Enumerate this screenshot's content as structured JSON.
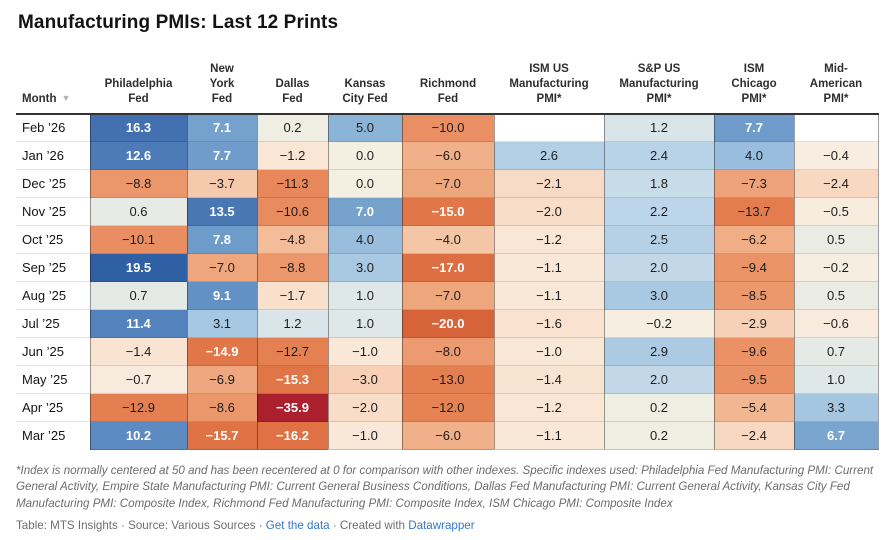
{
  "title": "Manufacturing PMIs: Last 12 Prints",
  "header": {
    "month_label": "Month",
    "sort_icon": "▼"
  },
  "columns": [
    {
      "lines": [
        "Philadelphia",
        "Fed"
      ]
    },
    {
      "lines": [
        "New",
        "York",
        "Fed"
      ]
    },
    {
      "lines": [
        "Dallas",
        "Fed"
      ]
    },
    {
      "lines": [
        "Kansas",
        "City Fed"
      ]
    },
    {
      "lines": [
        "Richmond",
        "Fed"
      ]
    },
    {
      "lines": [
        "ISM US",
        "Manufacturing",
        "PMI*"
      ]
    },
    {
      "lines": [
        "S&P US",
        "Manufacturing",
        "PMI*"
      ]
    },
    {
      "lines": [
        "ISM",
        "Chicago",
        "PMI*"
      ]
    },
    {
      "lines": [
        "Mid-",
        "American",
        "PMI*"
      ]
    }
  ],
  "chart_data": {
    "type": "table",
    "columns": [
      "Month",
      "Philadelphia Fed",
      "New York Fed",
      "Dallas Fed",
      "Kansas City Fed",
      "Richmond Fed",
      "ISM US Manufacturing PMI*",
      "S&P US Manufacturing PMI*",
      "ISM Chicago PMI*",
      "Mid-American PMI*"
    ],
    "rows": [
      [
        "Feb ’26",
        16.3,
        7.1,
        0.2,
        5.0,
        -10.0,
        null,
        1.2,
        7.7,
        null
      ],
      [
        "Jan ’26",
        12.6,
        7.7,
        -1.2,
        0.0,
        -6.0,
        2.6,
        2.4,
        4.0,
        -0.4
      ],
      [
        "Dec ’25",
        -8.8,
        -3.7,
        -11.3,
        0.0,
        -7.0,
        -2.1,
        1.8,
        -7.3,
        -2.4
      ],
      [
        "Nov ’25",
        0.6,
        13.5,
        -10.6,
        7.0,
        -15.0,
        -2.0,
        2.2,
        -13.7,
        -0.5
      ],
      [
        "Oct ’25",
        -10.1,
        7.8,
        -4.8,
        4.0,
        -4.0,
        -1.2,
        2.5,
        -6.2,
        0.5
      ],
      [
        "Sep ’25",
        19.5,
        -7.0,
        -8.8,
        3.0,
        -17.0,
        -1.1,
        2.0,
        -9.4,
        -0.2
      ],
      [
        "Aug ’25",
        0.7,
        9.1,
        -1.7,
        1.0,
        -7.0,
        -1.1,
        3.0,
        -8.5,
        0.5
      ],
      [
        "Jul ’25",
        11.4,
        3.1,
        1.2,
        1.0,
        -20.0,
        -1.6,
        -0.2,
        -2.9,
        -0.6
      ],
      [
        "Jun ’25",
        -1.4,
        -14.9,
        -12.7,
        -1.0,
        -8.0,
        -1.0,
        2.9,
        -9.6,
        0.7
      ],
      [
        "May ’25",
        -0.7,
        -6.9,
        -15.3,
        -3.0,
        -13.0,
        -1.4,
        2.0,
        -9.5,
        1.0
      ],
      [
        "Apr ’25",
        -12.9,
        -8.6,
        -35.9,
        -2.0,
        -12.0,
        -1.2,
        0.2,
        -5.4,
        3.3
      ],
      [
        "Mar ’25",
        10.2,
        -15.7,
        -16.2,
        -1.0,
        -6.0,
        -1.1,
        0.2,
        -2.4,
        6.7
      ]
    ],
    "title": "Manufacturing PMIs: Last 12 Prints",
    "legend_position": "none",
    "grid": "cell-borders"
  },
  "color_scale": {
    "stops": [
      [
        -36,
        "#ab1f2f"
      ],
      [
        -21,
        "#d55f38"
      ],
      [
        -16,
        "#df7244"
      ],
      [
        -12,
        "#e68355"
      ],
      [
        -8,
        "#ec9b70"
      ],
      [
        -5,
        "#f2bb97"
      ],
      [
        -3,
        "#f7d0b5"
      ],
      [
        -1.5,
        "#f9e3d1"
      ],
      [
        -0.5,
        "#f8ecdf"
      ],
      [
        0,
        "#f3f0e2"
      ],
      [
        0.5,
        "#eaece4"
      ],
      [
        1,
        "#dfe8e9"
      ],
      [
        2,
        "#c2d8e9"
      ],
      [
        3,
        "#a9c9e2"
      ],
      [
        4,
        "#99bedd"
      ],
      [
        5,
        "#8cb4d7"
      ],
      [
        7,
        "#76a2cd"
      ],
      [
        9,
        "#6392c5"
      ],
      [
        11,
        "#5785be"
      ],
      [
        13,
        "#4a78b5"
      ],
      [
        16.5,
        "#4170b0"
      ],
      [
        20,
        "#2c5da4"
      ]
    ],
    "white_text_pos_min": 6.5,
    "white_text_neg_max": -14.4,
    "dark_text": "#1d1d1d",
    "white_text": "#ffffff",
    "empty_cell": "#ffffff",
    "header_rule": "#333333"
  },
  "footnote": "*Index is normally centered at 50 and has been recentered at 0 for comparison with other indexes. Specific indexes used: Philadelphia Fed Manufacturing PMI: Current General Activity, Empire State Manufacturing PMI: Current General Business Conditions, Dallas Fed Manufacturing PMI: Current General Activity, Kansas City Fed Manufacturing PMI: Composite Index, Richmond Fed Manufacturing PMI: Composite Index, ISM Chicago PMI: Composite Index",
  "attribution": {
    "prefix": "Table: MTS Insights · Source: Various Sources · ",
    "get_data_label": "Get the data",
    "middle": " · Created with ",
    "datawrapper_label": "Datawrapper",
    "link_color": "#3478c9"
  }
}
